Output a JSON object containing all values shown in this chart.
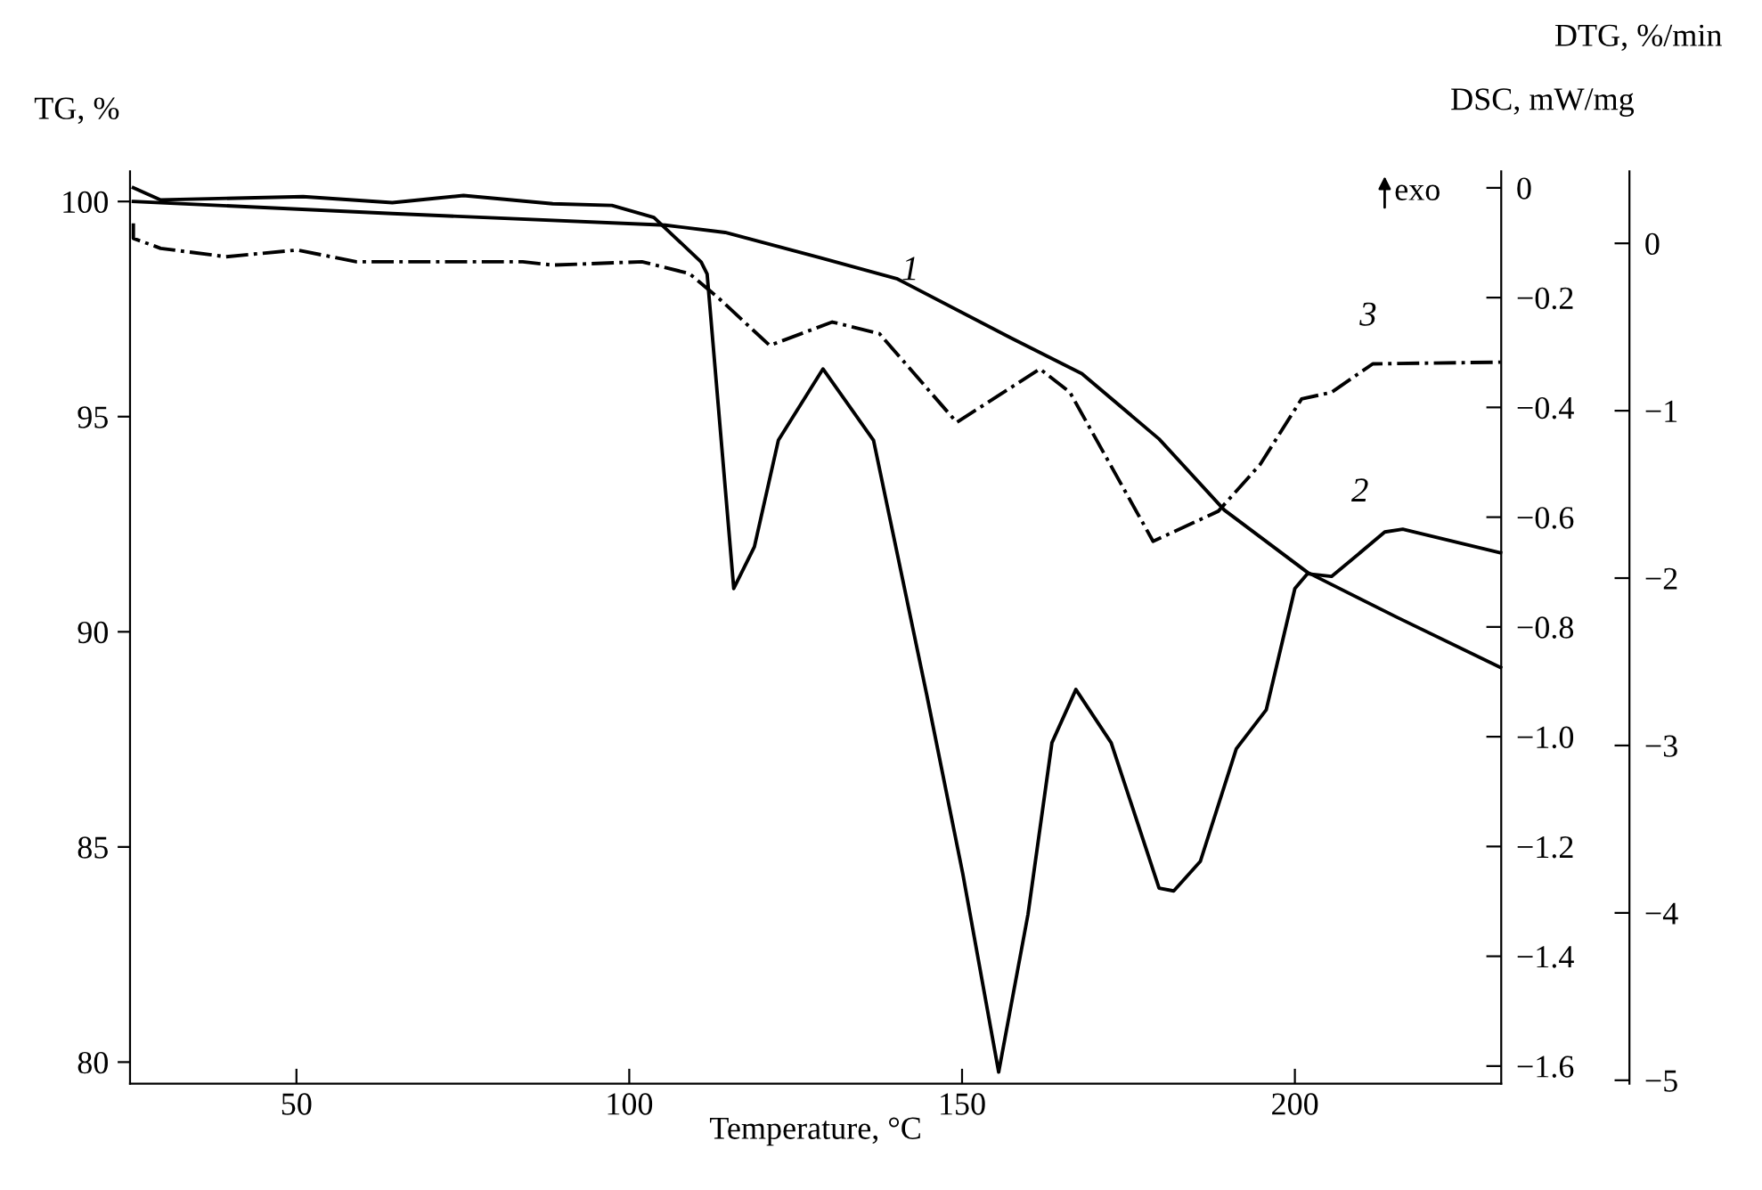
{
  "chart_data": {
    "type": "line",
    "xlabel": "Temperature, °C",
    "ylabel": "TG, %",
    "y2label": "DSC, mW/mg",
    "y3label": "DTG, %/min",
    "xlim": [
      25,
      231
    ],
    "xticks": [
      50,
      100,
      150,
      200
    ],
    "ylim": [
      79.5,
      100.7
    ],
    "yticks": [
      80,
      85,
      90,
      95,
      100
    ],
    "y2lim": [
      -1.632,
      0.03
    ],
    "y2ticks": [
      -1.6,
      -1.4,
      -1.2,
      {
        "value": -1.0,
        "label": "−1.0"
      },
      -0.8,
      -0.6,
      -0.4,
      -0.2,
      0
    ],
    "y3lim": [
      -5.02,
      0.43
    ],
    "y3ticks": [
      -5,
      -4,
      -3,
      -2,
      -1,
      0
    ],
    "grid": false,
    "marker": "none",
    "annotations": [
      "exo"
    ],
    "series": [
      {
        "name": "1",
        "axis": "y",
        "color": "#000000",
        "line_style": "solid",
        "x": [
          25.5,
          64.4,
          105.4,
          114.4,
          128.7,
          140.3,
          157.3,
          168,
          179.6,
          189.4,
          201.9,
          215.3,
          230.9
        ],
        "values": [
          100.0,
          99.72,
          99.45,
          99.28,
          98.69,
          98.2,
          96.83,
          96.0,
          94.48,
          92.83,
          91.38,
          90.34,
          89.17
        ]
      },
      {
        "name": "2",
        "axis": "y2",
        "color": "#000000",
        "line_style": "solid",
        "x": [
          25.5,
          29.6,
          51,
          64.4,
          75.1,
          88.5,
          97.4,
          103.7,
          110.8,
          111.7,
          115.7,
          118.8,
          122.4,
          129.1,
          136.7,
          144.7,
          150.1,
          155.5,
          159.9,
          163.5,
          167.1,
          172.4,
          179.6,
          181.8,
          185.8,
          191.2,
          195.7,
          200,
          201.9,
          205.5,
          208.2,
          213.5,
          216.2,
          230.9
        ],
        "values": [
          0.0,
          -0.022,
          -0.016,
          -0.027,
          -0.014,
          -0.029,
          -0.032,
          -0.054,
          -0.135,
          -0.157,
          -0.73,
          -0.654,
          -0.46,
          -0.33,
          -0.46,
          -0.924,
          -1.249,
          -1.611,
          -1.324,
          -1.011,
          -0.914,
          -1.011,
          -1.276,
          -1.281,
          -1.227,
          -1.022,
          -0.951,
          -0.73,
          -0.703,
          -0.708,
          -0.681,
          -0.627,
          -0.622,
          -0.665
        ]
      },
      {
        "name": "3",
        "axis": "y3",
        "color": "#000000",
        "line_style": "dashdot",
        "x": [
          25.5,
          25.5,
          29.6,
          39.4,
          50.1,
          59,
          84,
          88.5,
          101.9,
          109,
          113.5,
          121.1,
          130.5,
          137.6,
          149.2,
          161.7,
          166.2,
          178.7,
          188.5,
          194.8,
          201,
          205.5,
          211.7,
          230.9
        ],
        "values": [
          0.12,
          0.03,
          -0.03,
          -0.08,
          -0.04,
          -0.11,
          -0.11,
          -0.13,
          -0.11,
          -0.18,
          -0.33,
          -0.61,
          -0.47,
          -0.54,
          -1.07,
          -0.75,
          -0.89,
          -1.78,
          -1.6,
          -1.32,
          -0.93,
          -0.89,
          -0.72,
          -0.71
        ]
      }
    ]
  }
}
